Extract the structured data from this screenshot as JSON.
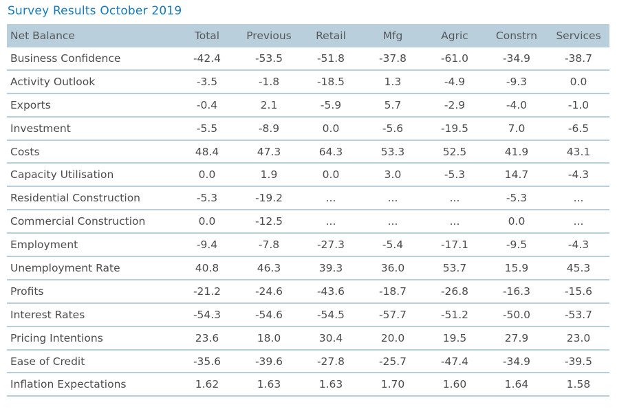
{
  "title": "Survey Results October 2019",
  "colors": {
    "title": "#137bbf",
    "header_bg": "#b9cfdc",
    "header_text": "#58585b",
    "body_text": "#4c4c4e",
    "divider": "#b7cedd"
  },
  "chart_data": {
    "type": "table",
    "title": "Survey Results October 2019",
    "columns": [
      "Net Balance",
      "Total",
      "Previous",
      "Retail",
      "Mfg",
      "Agric",
      "Constrn",
      "Services"
    ],
    "rows": [
      [
        "Business Confidence",
        "-42.4",
        "-53.5",
        "-51.8",
        "-37.8",
        "-61.0",
        "-34.9",
        "-38.7"
      ],
      [
        "Activity Outlook",
        "-3.5",
        "-1.8",
        "-18.5",
        "1.3",
        "-4.9",
        "-9.3",
        "0.0"
      ],
      [
        "Exports",
        "-0.4",
        "2.1",
        "-5.9",
        "5.7",
        "-2.9",
        "-4.0",
        "-1.0"
      ],
      [
        "Investment",
        "-5.5",
        "-8.9",
        "0.0",
        "-5.6",
        "-19.5",
        "7.0",
        "-6.5"
      ],
      [
        "Costs",
        "48.4",
        "47.3",
        "64.3",
        "53.3",
        "52.5",
        "41.9",
        "43.1"
      ],
      [
        "Capacity Utilisation",
        "0.0",
        "1.9",
        "0.0",
        "3.0",
        "-5.3",
        "14.7",
        "-4.3"
      ],
      [
        "Residential Construction",
        "-5.3",
        "-19.2",
        "...",
        "...",
        "...",
        "-5.3",
        "..."
      ],
      [
        "Commercial Construction",
        "0.0",
        "-12.5",
        "...",
        "...",
        "...",
        "0.0",
        "..."
      ],
      [
        "Employment",
        "-9.4",
        "-7.8",
        "-27.3",
        "-5.4",
        "-17.1",
        "-9.5",
        "-4.3"
      ],
      [
        "Unemployment Rate",
        "40.8",
        "46.3",
        "39.3",
        "36.0",
        "53.7",
        "15.9",
        "45.3"
      ],
      [
        "Profits",
        "-21.2",
        "-24.6",
        "-43.6",
        "-18.7",
        "-26.8",
        "-16.3",
        "-15.6"
      ],
      [
        "Interest Rates",
        "-54.3",
        "-54.6",
        "-54.5",
        "-57.7",
        "-51.2",
        "-50.0",
        "-53.7"
      ],
      [
        "Pricing Intentions",
        "23.6",
        "18.0",
        "30.4",
        "20.0",
        "19.5",
        "27.9",
        "23.0"
      ],
      [
        "Ease of Credit",
        "-35.6",
        "-39.6",
        "-27.8",
        "-25.7",
        "-47.4",
        "-34.9",
        "-39.5"
      ],
      [
        "Inflation Expectations",
        "1.62",
        "1.63",
        "1.63",
        "1.70",
        "1.60",
        "1.64",
        "1.58"
      ]
    ]
  }
}
